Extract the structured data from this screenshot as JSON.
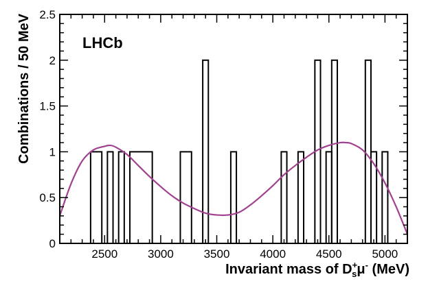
{
  "chart_data": {
    "type": "histogram",
    "experiment_label": "LHCb",
    "xlabel_prefix": "Invariant mass of D",
    "xlabel_sub": "s",
    "xlabel_sup": "+",
    "xlabel_mu": "μ",
    "xlabel_mu_sup": "-",
    "xlabel_suffix": " (MeV)",
    "ylabel": "Combinations / 50 MeV",
    "xlim": [
      2100,
      5200
    ],
    "ylim": [
      0,
      2.5
    ],
    "bin_width": 50,
    "x_ticks": [
      2500,
      3000,
      3500,
      4000,
      4500,
      5000
    ],
    "x_tick_labels": [
      "2500",
      "3000",
      "3500",
      "4000",
      "4500",
      "5000"
    ],
    "y_ticks": [
      0,
      0.5,
      1,
      1.5,
      2,
      2.5
    ],
    "y_tick_labels": [
      "0",
      "0.5",
      "1",
      "1.5",
      "2",
      "2.5"
    ],
    "bins": [
      {
        "low": 2375,
        "high": 2475,
        "count": 1
      },
      {
        "low": 2525,
        "high": 2575,
        "count": 1
      },
      {
        "low": 2625,
        "high": 2675,
        "count": 1
      },
      {
        "low": 2725,
        "high": 2925,
        "count": 1
      },
      {
        "low": 3175,
        "high": 3275,
        "count": 1
      },
      {
        "low": 3375,
        "high": 3425,
        "count": 2
      },
      {
        "low": 3625,
        "high": 3675,
        "count": 1
      },
      {
        "low": 4075,
        "high": 4125,
        "count": 1
      },
      {
        "low": 4225,
        "high": 4275,
        "count": 1
      },
      {
        "low": 4375,
        "high": 4425,
        "count": 2
      },
      {
        "low": 4475,
        "high": 4525,
        "count": 1
      },
      {
        "low": 4525,
        "high": 4575,
        "count": 2
      },
      {
        "low": 4825,
        "high": 4875,
        "count": 2
      },
      {
        "low": 4875,
        "high": 4925,
        "count": 1
      },
      {
        "low": 4975,
        "high": 5025,
        "count": 1
      }
    ],
    "fit_curve": {
      "name": "fit",
      "color": "#a0408e",
      "x": [
        2100,
        2200,
        2300,
        2400,
        2500,
        2550,
        2600,
        2700,
        2800,
        2900,
        3000,
        3100,
        3200,
        3300,
        3400,
        3500,
        3600,
        3700,
        3800,
        3900,
        4000,
        4100,
        4200,
        4300,
        4400,
        4500,
        4600,
        4650,
        4700,
        4800,
        4900,
        5000,
        5100,
        5200
      ],
      "y": [
        0.3,
        0.65,
        0.9,
        1.02,
        1.06,
        1.07,
        1.05,
        0.97,
        0.85,
        0.73,
        0.62,
        0.52,
        0.44,
        0.38,
        0.33,
        0.31,
        0.31,
        0.34,
        0.42,
        0.52,
        0.63,
        0.75,
        0.85,
        0.94,
        1.02,
        1.07,
        1.1,
        1.1,
        1.09,
        1.02,
        0.87,
        0.66,
        0.4,
        0.1
      ]
    }
  }
}
